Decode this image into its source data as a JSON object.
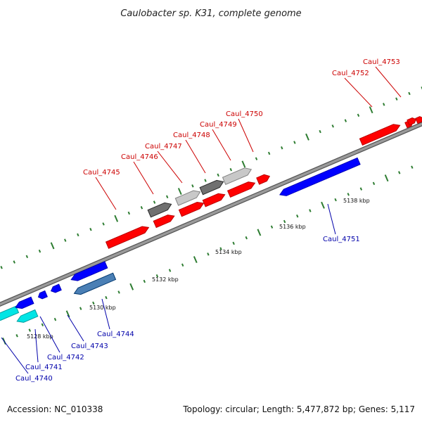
{
  "title": "Caulobacter sp. K31, complete genome",
  "footer": {
    "accession": "Accession: NC_010338",
    "topology": "Topology: circular; Length: 5,477,872 bp; Genes: 5,117"
  },
  "colors": {
    "red": "#ff0000",
    "blue": "#0000ff",
    "cyan": "#00e5e5",
    "steelblue": "#4a7fb5",
    "darkgray": "#707070",
    "lightgray": "#c8c8c8",
    "backbone": "#808080",
    "tick": "#2e7d32",
    "label_red": "#cc0000",
    "label_blue": "#0000aa"
  },
  "axis": {
    "labels": [
      "5128 kbp",
      "5130 kbp",
      "5132 kbp",
      "5134 kbp",
      "5136 kbp",
      "5138 kbp"
    ]
  },
  "genes": [
    {
      "label": "Caul_4740",
      "strand": "-",
      "color": "cyan"
    },
    {
      "label": "Caul_4741",
      "strand": "-",
      "color": "cyan"
    },
    {
      "label": "Caul_4742",
      "strand": "-",
      "color": "blue"
    },
    {
      "label": "Caul_4743",
      "strand": "-",
      "color": "blue"
    },
    {
      "label": "Caul_4744",
      "strand": "-",
      "color": "steelblue"
    },
    {
      "label": "Caul_4745",
      "strand": "+",
      "color": "red"
    },
    {
      "label": "Caul_4746",
      "strand": "+",
      "color": "darkgray"
    },
    {
      "label": "Caul_4747",
      "strand": "+",
      "color": "red"
    },
    {
      "label": "Caul_4748",
      "strand": "+",
      "color": "lightgray"
    },
    {
      "label": "Caul_4749",
      "strand": "+",
      "color": "darkgray"
    },
    {
      "label": "Caul_4750",
      "strand": "+",
      "color": "lightgray"
    },
    {
      "label": "Caul_4751",
      "strand": "-",
      "color": "blue"
    },
    {
      "label": "Caul_4752",
      "strand": "+",
      "color": "red"
    },
    {
      "label": "Caul_4753",
      "strand": "+",
      "color": "red"
    }
  ]
}
